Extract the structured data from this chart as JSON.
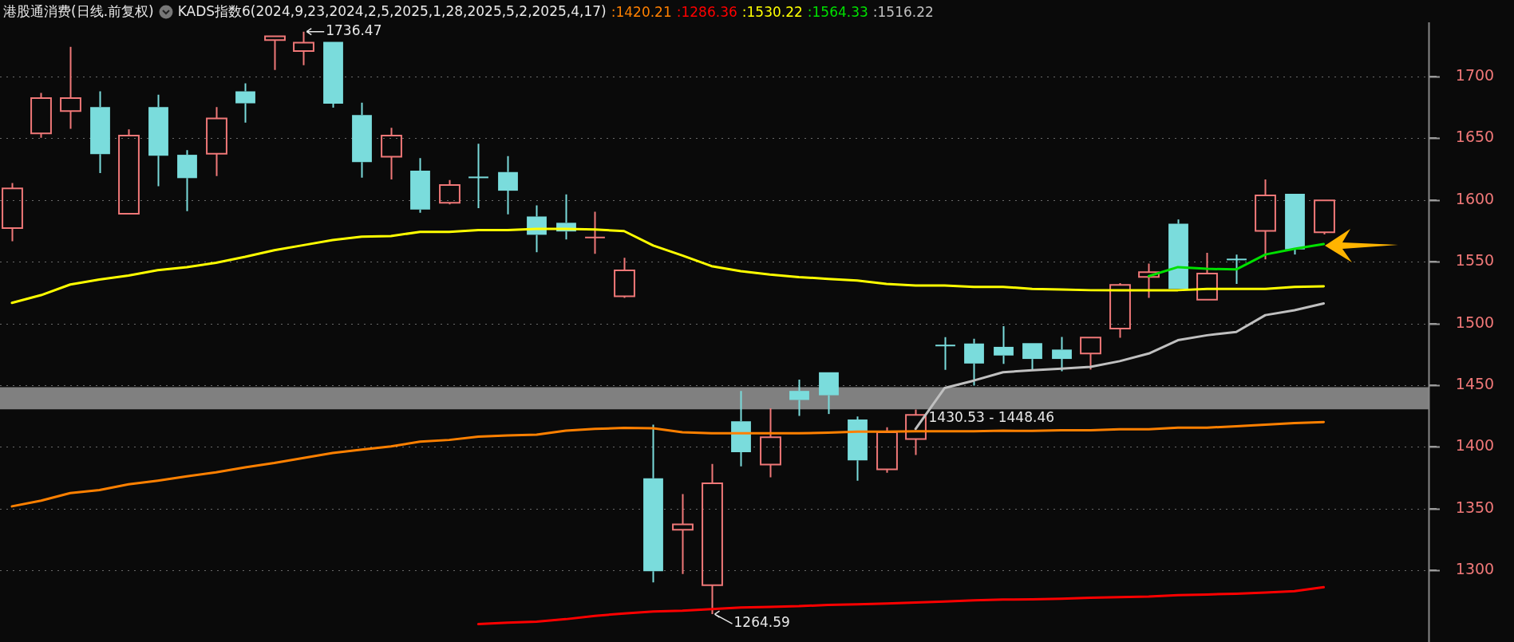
{
  "chart_data": {
    "type": "candlestick",
    "title": "港股通消费(日线.前复权)",
    "subtitle": "KADS指数6(2024,9,23,2024,2,5,2025,1,28,2025,5,2,2025,4,17)",
    "categories": [
      null,
      null,
      null,
      null,
      null,
      null,
      null,
      null,
      null,
      null,
      null,
      null,
      null,
      null,
      null,
      null,
      null,
      null,
      null,
      null,
      null,
      null,
      null,
      null,
      null,
      null,
      null,
      null,
      null,
      null,
      null,
      null,
      null,
      null,
      null,
      null,
      null,
      null,
      null,
      null,
      null,
      null,
      null,
      null,
      null,
      null
    ],
    "ohlc": [
      [
        1577.3,
        1613.8,
        1566.7,
        1609.4
      ],
      [
        1654.0,
        1686.8,
        1650.5,
        1682.7
      ],
      [
        1672.2,
        1724.1,
        1657.8,
        1682.7
      ],
      [
        1675.4,
        1688.1,
        1621.9,
        1637.3
      ],
      [
        1588.9,
        1657.3,
        1588.9,
        1652.2
      ],
      [
        1675.4,
        1685.4,
        1611.3,
        1635.9
      ],
      [
        1636.7,
        1640.5,
        1591.1,
        1617.8
      ],
      [
        1637.6,
        1675.4,
        1619.4,
        1666.2
      ],
      [
        1688.1,
        1694.6,
        1662.7,
        1678.4
      ],
      [
        1729.7,
        1732.7,
        1705.4,
        1732.7
      ],
      [
        1720.8,
        1736.47,
        1709.2,
        1727.6
      ],
      [
        1728.1,
        1728.1,
        1674.9,
        1678.1
      ],
      [
        1668.9,
        1678.9,
        1618.1,
        1630.8
      ],
      [
        1635.1,
        1658.6,
        1616.7,
        1652.2
      ],
      [
        1623.8,
        1634.0,
        1589.7,
        1592.4
      ],
      [
        1597.8,
        1616.2,
        1596.5,
        1612.2
      ],
      [
        1618.4,
        1645.7,
        1593.5,
        1618.4
      ],
      [
        1622.7,
        1635.7,
        1588.4,
        1607.6
      ],
      [
        1586.7,
        1595.7,
        1557.8,
        1571.9
      ],
      [
        1581.6,
        1604.6,
        1568.1,
        1574.6
      ],
      [
        1569.7,
        1590.5,
        1556.5,
        1569.7
      ],
      [
        1522.1,
        1553.2,
        1520.8,
        1543.0
      ],
      [
        1374.6,
        1418.1,
        1290.3,
        1299.4
      ],
      [
        1332.9,
        1361.9,
        1297.0,
        1337.3
      ],
      [
        1288.1,
        1386.2,
        1264.59,
        1370.5
      ],
      [
        1420.8,
        1445.4,
        1384.3,
        1395.7
      ],
      [
        1385.7,
        1431.3,
        1375.4,
        1407.8
      ],
      [
        1445.4,
        1454.6,
        1425.1,
        1438.1
      ],
      [
        1460.5,
        1460.5,
        1426.7,
        1441.9
      ],
      [
        1422.2,
        1424.6,
        1372.7,
        1389.2
      ],
      [
        1381.9,
        1415.9,
        1379.2,
        1411.9
      ],
      [
        1406.5,
        1430.3,
        1393.5,
        1425.9
      ],
      [
        1482.2,
        1488.9,
        1462.4,
        1482.2
      ],
      [
        1483.8,
        1487.6,
        1449.7,
        1467.6
      ],
      [
        1481.1,
        1497.8,
        1467.3,
        1474.1
      ],
      [
        1484.1,
        1484.1,
        1462.2,
        1471.3
      ],
      [
        1478.9,
        1489.2,
        1461.3,
        1471.3
      ],
      [
        1475.7,
        1488.6,
        1462.7,
        1488.6
      ],
      [
        1495.9,
        1532.7,
        1488.4,
        1531.3
      ],
      [
        1537.8,
        1548.6,
        1520.8,
        1541.6
      ],
      [
        1580.8,
        1584.3,
        1528.1,
        1528.1
      ],
      [
        1519.4,
        1557.3,
        1519.4,
        1540.5
      ],
      [
        1551.9,
        1555.9,
        1532.1,
        1551.9
      ],
      [
        1575.1,
        1616.7,
        1551.9,
        1603.8
      ],
      [
        1605.1,
        1605.1,
        1555.9,
        1560.0
      ],
      [
        1574.0,
        1599.7,
        1572.2,
        1599.7
      ]
    ],
    "colors": [
      "#f07878",
      "#f07878",
      "#f07878",
      "#7adcdc",
      "#f07878",
      "#7adcdc",
      "#7adcdc",
      "#f07878",
      "#7adcdc",
      "#f07878",
      "#f07878",
      "#7adcdc",
      "#7adcdc",
      "#f07878",
      "#7adcdc",
      "#f07878",
      "#7adcdc",
      "#7adcdc",
      "#7adcdc",
      "#7adcdc",
      "#f07878",
      "#f07878",
      "#7adcdc",
      "#f07878",
      "#f07878",
      "#7adcdc",
      "#f07878",
      "#7adcdc",
      "#7adcdc",
      "#7adcdc",
      "#f07878",
      "#f07878",
      "#7adcdc",
      "#7adcdc",
      "#7adcdc",
      "#7adcdc",
      "#7adcdc",
      "#f07878",
      "#f07878",
      "#f07878",
      "#7adcdc",
      "#f07878",
      "#7adcdc",
      "#f07878",
      "#7adcdc",
      "#f07878"
    ],
    "series": [
      {
        "type": "line",
        "name": ":1420.21",
        "color": "#ff8000",
        "values": [
          1351.9,
          1356.5,
          1362.7,
          1365.1,
          1369.7,
          1372.7,
          1376.2,
          1379.4,
          1383.5,
          1387.0,
          1391.1,
          1395.1,
          1397.8,
          1400.5,
          1404.3,
          1405.7,
          1408.4,
          1409.4,
          1410.0,
          1413.2,
          1414.6,
          1415.4,
          1415.1,
          1411.9,
          1411.1,
          1411.1,
          1411.1,
          1411.1,
          1411.6,
          1412.4,
          1412.4,
          1412.7,
          1412.7,
          1412.7,
          1413.2,
          1413.0,
          1413.5,
          1413.5,
          1414.3,
          1414.3,
          1415.7,
          1415.7,
          1416.7,
          1418.1,
          1419.4,
          1420.21
        ]
      },
      {
        "type": "line",
        "name": ":1286.36",
        "color": "#ff0000",
        "values": [
          null,
          null,
          null,
          null,
          null,
          null,
          null,
          null,
          null,
          null,
          null,
          null,
          null,
          null,
          null,
          null,
          1256.5,
          1257.7,
          1258.4,
          1260.5,
          1263.2,
          1265.1,
          1266.7,
          1267.3,
          1268.6,
          1270,
          1270.5,
          1271,
          1272.1,
          1272.6,
          1273.2,
          1274.0,
          1274.8,
          1275.8,
          1276.4,
          1276.5,
          1277.0,
          1277.8,
          1278.4,
          1278.9,
          1280.0,
          1280.5,
          1281.1,
          1282.1,
          1283.2,
          1286.36
        ]
      },
      {
        "type": "line",
        "name": ":1530.22",
        "color": "#ffff00",
        "values": [
          1516.7,
          1523,
          1531.6,
          1535.7,
          1538.9,
          1543.2,
          1545.7,
          1549.2,
          1554.0,
          1559.4,
          1563.5,
          1567.6,
          1570.3,
          1570.8,
          1574.3,
          1574.3,
          1575.7,
          1575.7,
          1576.7,
          1576.7,
          1576.2,
          1574.9,
          1563.2,
          1555.1,
          1546.5,
          1542.4,
          1539.7,
          1537.6,
          1536.2,
          1534.8,
          1532.1,
          1530.8,
          1530.8,
          1529.7,
          1529.7,
          1528.1,
          1527.5,
          1527,
          1527,
          1527,
          1527,
          1528.1,
          1528.1,
          1528.1,
          1529.7,
          1530.22
        ]
      },
      {
        "type": "line",
        "name": ":1564.33",
        "color": "#00e000",
        "values": [
          null,
          null,
          null,
          null,
          null,
          null,
          null,
          null,
          null,
          null,
          null,
          null,
          null,
          null,
          null,
          null,
          null,
          null,
          null,
          null,
          null,
          null,
          null,
          null,
          null,
          null,
          null,
          null,
          null,
          null,
          null,
          null,
          null,
          null,
          null,
          null,
          null,
          null,
          null,
          1538.4,
          1545.7,
          1544.3,
          1543.8,
          1555.9,
          1560.5,
          1564.33
        ]
      },
      {
        "type": "line",
        "name": ":1516.22",
        "color": "#c0c0c0",
        "values": [
          null,
          null,
          null,
          null,
          null,
          null,
          null,
          null,
          null,
          null,
          null,
          null,
          null,
          null,
          null,
          null,
          null,
          null,
          null,
          null,
          null,
          null,
          null,
          null,
          null,
          null,
          null,
          null,
          null,
          null,
          null,
          1414.6,
          1447.8,
          1453.8,
          1460.5,
          1462.2,
          1463.5,
          1464.9,
          1469.5,
          1475.7,
          1486.5,
          1490.5,
          1493.2,
          1506.8,
          1510.8,
          1516.22
        ]
      }
    ],
    "bands": [
      {
        "axis": "y",
        "from": 1430.53,
        "to": 1448.46,
        "label": "1430.53 - 1448.46",
        "color": "#808080"
      }
    ],
    "annotations": [
      "1736.47",
      "1264.59"
    ],
    "ylim": [
      1242,
      1744
    ],
    "yticks": [
      1300,
      1350,
      1400,
      1450,
      1500,
      1550,
      1600,
      1650,
      1700
    ],
    "grid": "y",
    "legend": "top",
    "line_style": "solid",
    "marker": "none"
  }
}
